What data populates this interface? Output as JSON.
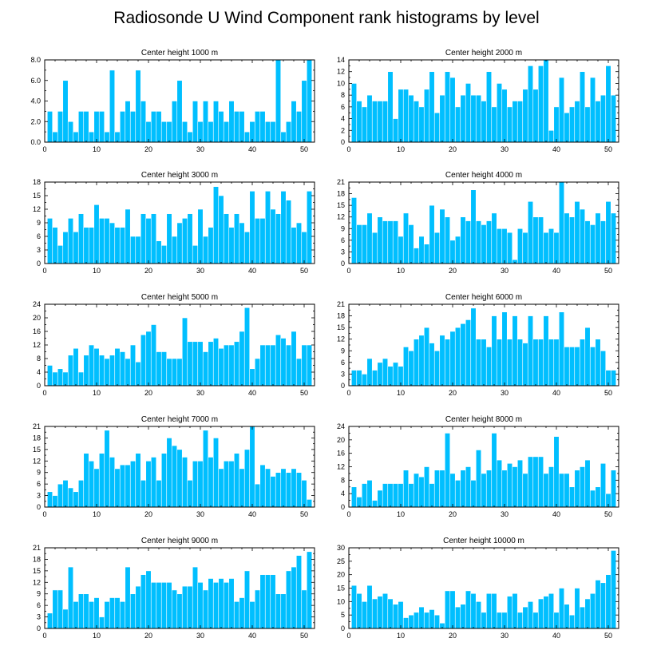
{
  "title": "Radiosonde U Wind Component rank histograms by level",
  "colors": {
    "bar": "#00BFFF"
  },
  "chart_data": [
    {
      "type": "bar",
      "title": "Center height 1000 m",
      "x": [
        1,
        2,
        3,
        4,
        5,
        6,
        7,
        8,
        9,
        10,
        11,
        12,
        13,
        14,
        15,
        16,
        17,
        18,
        19,
        20,
        21,
        22,
        23,
        24,
        25,
        26,
        27,
        28,
        29,
        30,
        31,
        32,
        33,
        34,
        35,
        36,
        37,
        38,
        39,
        40,
        41,
        42,
        43,
        44,
        45,
        46,
        47,
        48,
        49,
        50,
        51
      ],
      "values": [
        3,
        1,
        3,
        6,
        2,
        1,
        3,
        3,
        1,
        3,
        3,
        1,
        7,
        1,
        3,
        4,
        3,
        7,
        4,
        2,
        3,
        3,
        2,
        2,
        4,
        6,
        2,
        1,
        4,
        2,
        4,
        2,
        4,
        3,
        2,
        4,
        3,
        3,
        1,
        2,
        3,
        3,
        2,
        2,
        8,
        1,
        2,
        4,
        3,
        6,
        8
      ],
      "xlim": [
        0,
        52
      ],
      "ylim": [
        0,
        8
      ],
      "yticks": [
        0,
        2,
        4,
        6,
        8
      ],
      "ytick_labels": [
        "0.0",
        "2.0",
        "4.0",
        "6.0",
        "8.0"
      ],
      "xticks": [
        0,
        10,
        20,
        30,
        40,
        50
      ],
      "xtick_labels": [
        "0",
        "10",
        "20",
        "30",
        "40",
        "50"
      ]
    },
    {
      "type": "bar",
      "title": "Center height 2000 m",
      "x": [
        1,
        2,
        3,
        4,
        5,
        6,
        7,
        8,
        9,
        10,
        11,
        12,
        13,
        14,
        15,
        16,
        17,
        18,
        19,
        20,
        21,
        22,
        23,
        24,
        25,
        26,
        27,
        28,
        29,
        30,
        31,
        32,
        33,
        34,
        35,
        36,
        37,
        38,
        39,
        40,
        41,
        42,
        43,
        44,
        45,
        46,
        47,
        48,
        49,
        50,
        51
      ],
      "values": [
        10,
        7,
        6,
        8,
        7,
        7,
        7,
        12,
        4,
        9,
        9,
        8,
        7,
        6,
        9,
        12,
        5,
        8,
        12,
        11,
        6,
        8,
        10,
        8,
        8,
        7,
        12,
        6,
        10,
        9,
        6,
        7,
        7,
        9,
        13,
        9,
        13,
        14,
        2,
        6,
        11,
        5,
        6,
        7,
        12,
        6,
        11,
        7,
        8,
        13,
        8
      ],
      "xlim": [
        0,
        52
      ],
      "ylim": [
        0,
        14
      ],
      "yticks": [
        0,
        2,
        4,
        6,
        8,
        10,
        12,
        14
      ],
      "ytick_labels": [
        "0",
        "2",
        "4",
        "6",
        "8",
        "10",
        "12",
        "14"
      ],
      "xticks": [
        0,
        10,
        20,
        30,
        40,
        50
      ],
      "xtick_labels": [
        "0",
        "10",
        "20",
        "30",
        "40",
        "50"
      ]
    },
    {
      "type": "bar",
      "title": "Center height 3000 m",
      "x": [
        1,
        2,
        3,
        4,
        5,
        6,
        7,
        8,
        9,
        10,
        11,
        12,
        13,
        14,
        15,
        16,
        17,
        18,
        19,
        20,
        21,
        22,
        23,
        24,
        25,
        26,
        27,
        28,
        29,
        30,
        31,
        32,
        33,
        34,
        35,
        36,
        37,
        38,
        39,
        40,
        41,
        42,
        43,
        44,
        45,
        46,
        47,
        48,
        49,
        50,
        51
      ],
      "values": [
        10,
        8,
        4,
        7,
        10,
        7,
        11,
        8,
        8,
        13,
        10,
        10,
        9,
        8,
        8,
        12,
        6,
        6,
        11,
        10,
        11,
        5,
        4,
        11,
        6,
        9,
        10,
        11,
        4,
        12,
        6,
        8,
        17,
        15,
        11,
        8,
        11,
        9,
        7,
        16,
        10,
        10,
        16,
        12,
        11,
        16,
        14,
        8,
        9,
        7,
        16
      ],
      "xlim": [
        0,
        52
      ],
      "ylim": [
        0,
        18
      ],
      "yticks": [
        0,
        3,
        6,
        9,
        12,
        15,
        18
      ],
      "ytick_labels": [
        "0",
        "3",
        "6",
        "9",
        "12",
        "15",
        "18"
      ],
      "xticks": [
        0,
        10,
        20,
        30,
        40,
        50
      ],
      "xtick_labels": [
        "0",
        "10",
        "20",
        "30",
        "40",
        "50"
      ]
    },
    {
      "type": "bar",
      "title": "Center height 4000 m",
      "x": [
        1,
        2,
        3,
        4,
        5,
        6,
        7,
        8,
        9,
        10,
        11,
        12,
        13,
        14,
        15,
        16,
        17,
        18,
        19,
        20,
        21,
        22,
        23,
        24,
        25,
        26,
        27,
        28,
        29,
        30,
        31,
        32,
        33,
        34,
        35,
        36,
        37,
        38,
        39,
        40,
        41,
        42,
        43,
        44,
        45,
        46,
        47,
        48,
        49,
        50,
        51
      ],
      "values": [
        17,
        10,
        10,
        13,
        8,
        12,
        11,
        11,
        11,
        7,
        13,
        10,
        4,
        7,
        5,
        15,
        8,
        14,
        12,
        6,
        7,
        12,
        11,
        19,
        11,
        10,
        11,
        13,
        9,
        9,
        8,
        1,
        9,
        8,
        16,
        12,
        12,
        8,
        9,
        8,
        21,
        13,
        12,
        16,
        14,
        11,
        10,
        13,
        11,
        16,
        13
      ],
      "xlim": [
        0,
        52
      ],
      "ylim": [
        0,
        21
      ],
      "yticks": [
        0,
        3,
        6,
        9,
        12,
        15,
        18,
        21
      ],
      "ytick_labels": [
        "0",
        "3",
        "6",
        "9",
        "12",
        "15",
        "18",
        "21"
      ],
      "xticks": [
        0,
        10,
        20,
        30,
        40,
        50
      ],
      "xtick_labels": [
        "0",
        "10",
        "20",
        "30",
        "40",
        "50"
      ]
    },
    {
      "type": "bar",
      "title": "Center height 5000 m",
      "x": [
        1,
        2,
        3,
        4,
        5,
        6,
        7,
        8,
        9,
        10,
        11,
        12,
        13,
        14,
        15,
        16,
        17,
        18,
        19,
        20,
        21,
        22,
        23,
        24,
        25,
        26,
        27,
        28,
        29,
        30,
        31,
        32,
        33,
        34,
        35,
        36,
        37,
        38,
        39,
        40,
        41,
        42,
        43,
        44,
        45,
        46,
        47,
        48,
        49,
        50,
        51
      ],
      "values": [
        6,
        4,
        5,
        4,
        9,
        11,
        4,
        9,
        12,
        11,
        9,
        8,
        9,
        11,
        10,
        8,
        12,
        7,
        15,
        16,
        18,
        10,
        10,
        8,
        8,
        8,
        20,
        13,
        13,
        13,
        10,
        13,
        14,
        11,
        12,
        12,
        13,
        16,
        23,
        5,
        8,
        12,
        12,
        12,
        15,
        14,
        12,
        16,
        8,
        12,
        12
      ],
      "xlim": [
        0,
        52
      ],
      "ylim": [
        0,
        24
      ],
      "yticks": [
        0,
        4,
        8,
        12,
        16,
        20,
        24
      ],
      "ytick_labels": [
        "0",
        "4",
        "8",
        "12",
        "16",
        "20",
        "24"
      ],
      "xticks": [
        0,
        10,
        20,
        30,
        40,
        50
      ],
      "xtick_labels": [
        "0",
        "10",
        "20",
        "30",
        "40",
        "50"
      ]
    },
    {
      "type": "bar",
      "title": "Center height 6000 m",
      "x": [
        1,
        2,
        3,
        4,
        5,
        6,
        7,
        8,
        9,
        10,
        11,
        12,
        13,
        14,
        15,
        16,
        17,
        18,
        19,
        20,
        21,
        22,
        23,
        24,
        25,
        26,
        27,
        28,
        29,
        30,
        31,
        32,
        33,
        34,
        35,
        36,
        37,
        38,
        39,
        40,
        41,
        42,
        43,
        44,
        45,
        46,
        47,
        48,
        49,
        50,
        51
      ],
      "values": [
        4,
        4,
        3,
        7,
        4,
        6,
        7,
        5,
        6,
        5,
        10,
        9,
        12,
        13,
        15,
        11,
        9,
        13,
        12,
        14,
        15,
        16,
        17,
        20,
        12,
        12,
        10,
        18,
        12,
        19,
        12,
        18,
        12,
        11,
        18,
        12,
        12,
        18,
        12,
        12,
        19,
        10,
        10,
        10,
        12,
        15,
        10,
        12,
        9,
        4,
        4
      ],
      "xlim": [
        0,
        52
      ],
      "ylim": [
        0,
        21
      ],
      "yticks": [
        0,
        3,
        6,
        9,
        12,
        15,
        18,
        21
      ],
      "ytick_labels": [
        "0",
        "3",
        "6",
        "9",
        "12",
        "15",
        "18",
        "21"
      ],
      "xticks": [
        0,
        10,
        20,
        30,
        40,
        50
      ],
      "xtick_labels": [
        "0",
        "10",
        "20",
        "30",
        "40",
        "50"
      ]
    },
    {
      "type": "bar",
      "title": "Center height 7000 m",
      "x": [
        1,
        2,
        3,
        4,
        5,
        6,
        7,
        8,
        9,
        10,
        11,
        12,
        13,
        14,
        15,
        16,
        17,
        18,
        19,
        20,
        21,
        22,
        23,
        24,
        25,
        26,
        27,
        28,
        29,
        30,
        31,
        32,
        33,
        34,
        35,
        36,
        37,
        38,
        39,
        40,
        41,
        42,
        43,
        44,
        45,
        46,
        47,
        48,
        49,
        50,
        51
      ],
      "values": [
        4,
        3,
        6,
        7,
        5,
        4,
        7,
        14,
        12,
        10,
        14,
        20,
        13,
        10,
        11,
        11,
        12,
        14,
        7,
        12,
        13,
        7,
        14,
        18,
        16,
        15,
        13,
        7,
        12,
        12,
        20,
        13,
        18,
        10,
        12,
        12,
        14,
        10,
        15,
        21,
        6,
        11,
        10,
        8,
        9,
        10,
        9,
        10,
        9,
        7,
        2
      ],
      "xlim": [
        0,
        52
      ],
      "ylim": [
        0,
        21
      ],
      "yticks": [
        0,
        3,
        6,
        9,
        12,
        15,
        18,
        21
      ],
      "ytick_labels": [
        "0",
        "3",
        "6",
        "9",
        "12",
        "15",
        "18",
        "21"
      ],
      "xticks": [
        0,
        10,
        20,
        30,
        40,
        50
      ],
      "xtick_labels": [
        "0",
        "10",
        "20",
        "30",
        "40",
        "50"
      ]
    },
    {
      "type": "bar",
      "title": "Center height 8000 m",
      "x": [
        1,
        2,
        3,
        4,
        5,
        6,
        7,
        8,
        9,
        10,
        11,
        12,
        13,
        14,
        15,
        16,
        17,
        18,
        19,
        20,
        21,
        22,
        23,
        24,
        25,
        26,
        27,
        28,
        29,
        30,
        31,
        32,
        33,
        34,
        35,
        36,
        37,
        38,
        39,
        40,
        41,
        42,
        43,
        44,
        45,
        46,
        47,
        48,
        49,
        50,
        51
      ],
      "values": [
        6,
        3,
        7,
        8,
        2,
        5,
        7,
        7,
        7,
        7,
        11,
        7,
        10,
        9,
        12,
        7,
        11,
        11,
        22,
        10,
        8,
        11,
        12,
        8,
        17,
        10,
        11,
        22,
        14,
        11,
        13,
        12,
        14,
        10,
        15,
        15,
        15,
        10,
        12,
        21,
        10,
        10,
        6,
        11,
        12,
        14,
        5,
        6,
        13,
        4,
        11
      ],
      "xlim": [
        0,
        52
      ],
      "ylim": [
        0,
        24
      ],
      "yticks": [
        0,
        4,
        8,
        12,
        16,
        20,
        24
      ],
      "ytick_labels": [
        "0",
        "4",
        "8",
        "12",
        "16",
        "20",
        "24"
      ],
      "xticks": [
        0,
        10,
        20,
        30,
        40,
        50
      ],
      "xtick_labels": [
        "0",
        "10",
        "20",
        "30",
        "40",
        "50"
      ]
    },
    {
      "type": "bar",
      "title": "Center height 9000 m",
      "x": [
        1,
        2,
        3,
        4,
        5,
        6,
        7,
        8,
        9,
        10,
        11,
        12,
        13,
        14,
        15,
        16,
        17,
        18,
        19,
        20,
        21,
        22,
        23,
        24,
        25,
        26,
        27,
        28,
        29,
        30,
        31,
        32,
        33,
        34,
        35,
        36,
        37,
        38,
        39,
        40,
        41,
        42,
        43,
        44,
        45,
        46,
        47,
        48,
        49,
        50,
        51
      ],
      "values": [
        4,
        10,
        10,
        5,
        16,
        7,
        9,
        9,
        7,
        8,
        3,
        7,
        8,
        8,
        7,
        16,
        9,
        11,
        14,
        15,
        12,
        12,
        12,
        12,
        10,
        9,
        11,
        11,
        16,
        12,
        10,
        13,
        12,
        13,
        12,
        13,
        7,
        8,
        15,
        7,
        10,
        14,
        14,
        14,
        9,
        9,
        15,
        16,
        19,
        10,
        20
      ],
      "xlim": [
        0,
        52
      ],
      "ylim": [
        0,
        21
      ],
      "yticks": [
        0,
        3,
        6,
        9,
        12,
        15,
        18,
        21
      ],
      "ytick_labels": [
        "0",
        "3",
        "6",
        "9",
        "12",
        "15",
        "18",
        "21"
      ],
      "xticks": [
        0,
        10,
        20,
        30,
        40,
        50
      ],
      "xtick_labels": [
        "0",
        "10",
        "20",
        "30",
        "40",
        "50"
      ]
    },
    {
      "type": "bar",
      "title": "Center height 10000 m",
      "x": [
        1,
        2,
        3,
        4,
        5,
        6,
        7,
        8,
        9,
        10,
        11,
        12,
        13,
        14,
        15,
        16,
        17,
        18,
        19,
        20,
        21,
        22,
        23,
        24,
        25,
        26,
        27,
        28,
        29,
        30,
        31,
        32,
        33,
        34,
        35,
        36,
        37,
        38,
        39,
        40,
        41,
        42,
        43,
        44,
        45,
        46,
        47,
        48,
        49,
        50,
        51
      ],
      "values": [
        16,
        13,
        10,
        16,
        11,
        12,
        13,
        11,
        9,
        10,
        4,
        5,
        6,
        8,
        6,
        7,
        5,
        2,
        14,
        14,
        8,
        9,
        14,
        13,
        10,
        6,
        13,
        13,
        6,
        6,
        12,
        13,
        6,
        8,
        10,
        6,
        11,
        12,
        13,
        6,
        15,
        9,
        5,
        15,
        8,
        11,
        13,
        18,
        17,
        20,
        29
      ],
      "xlim": [
        0,
        52
      ],
      "ylim": [
        0,
        30
      ],
      "yticks": [
        0,
        5,
        10,
        15,
        20,
        25,
        30
      ],
      "ytick_labels": [
        "0",
        "5",
        "10",
        "15",
        "20",
        "25",
        "30"
      ],
      "xticks": [
        0,
        10,
        20,
        30,
        40,
        50
      ],
      "xtick_labels": [
        "0",
        "10",
        "20",
        "30",
        "40",
        "50"
      ]
    }
  ]
}
